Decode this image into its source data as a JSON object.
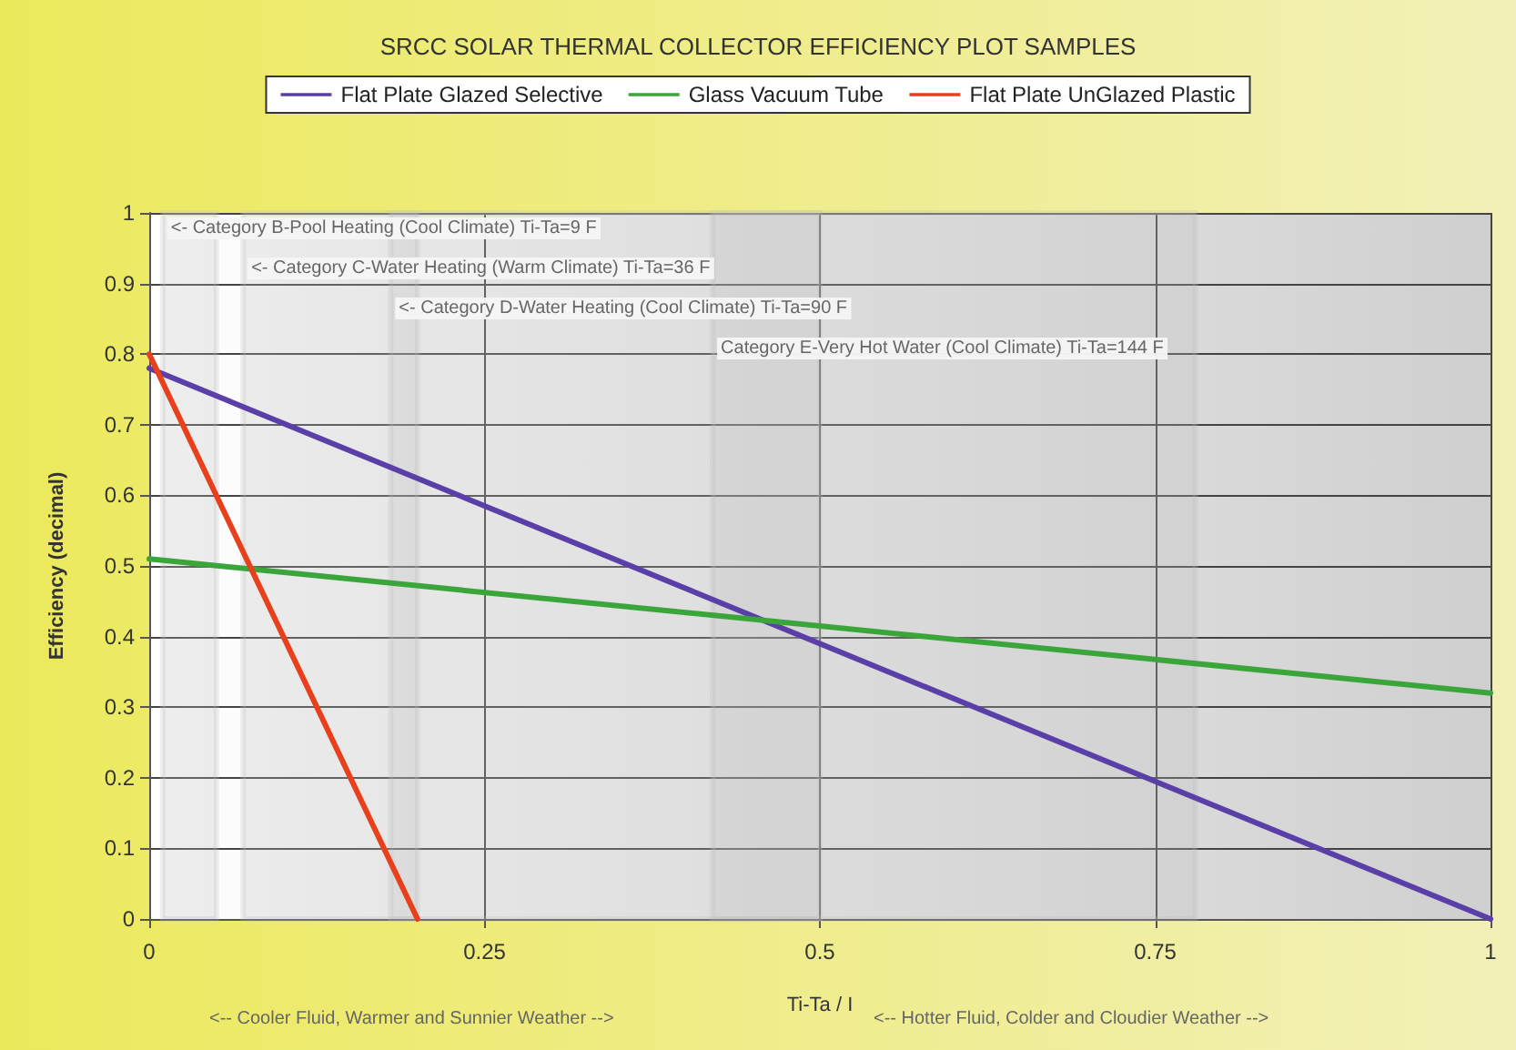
{
  "chart_data": {
    "type": "line",
    "title": "SRCC SOLAR THERMAL COLLECTOR EFFICIENCY PLOT SAMPLES",
    "xlabel": "Ti-Ta / I",
    "ylabel": "Efficiency (decimal)",
    "x": [
      0,
      1
    ],
    "series": [
      {
        "name": "Flat Plate Glazed Selective",
        "color": "#5b3fa8",
        "values": [
          0.78,
          0
        ]
      },
      {
        "name": "Glass Vacuum Tube",
        "color": "#3aa63a",
        "values": [
          0.51,
          0.32
        ]
      },
      {
        "name": "Flat Plate UnGlazed Plastic",
        "color": "#e8401c",
        "x": [
          0,
          0.2
        ],
        "values": [
          0.8,
          0
        ]
      }
    ],
    "xlim": [
      0,
      1
    ],
    "xticks": [
      0,
      0.25,
      0.5,
      0.75,
      1
    ],
    "ylim": [
      0,
      1
    ],
    "yticks": [
      0,
      0.1,
      0.2,
      0.3,
      0.4,
      0.5,
      0.6,
      0.7,
      0.8,
      0.9,
      1
    ],
    "bands": [
      {
        "axis": "x",
        "from": 0.01,
        "to": 0.05,
        "label": "<- Category B-Pool Heating (Cool Climate) Ti-Ta=9 F",
        "color": "#bdbdbd"
      },
      {
        "axis": "x",
        "from": 0.07,
        "to": 0.2,
        "label": "<- Category C-Water Heating (Warm Climate) Ti-Ta=36 F",
        "color": "#bdbdbd"
      },
      {
        "axis": "x",
        "from": 0.18,
        "to": 0.5,
        "label": "<- Category D-Water Heating (Cool Climate) Ti-Ta=90 F",
        "color": "#bdbdbd"
      },
      {
        "axis": "x",
        "from": 0.42,
        "to": 0.78,
        "label": "Category E-Very Hot Water (Cool Climate) Ti-Ta=144 F",
        "color": "#bdbdbd"
      }
    ],
    "annotations": [
      "<-- Cooler Fluid, Warmer and Sunnier Weather -->",
      "<-- Hotter Fluid, Colder and Cloudier Weather -->"
    ],
    "grid": true,
    "legend": "top",
    "marker": "none",
    "line_style": "solid"
  }
}
